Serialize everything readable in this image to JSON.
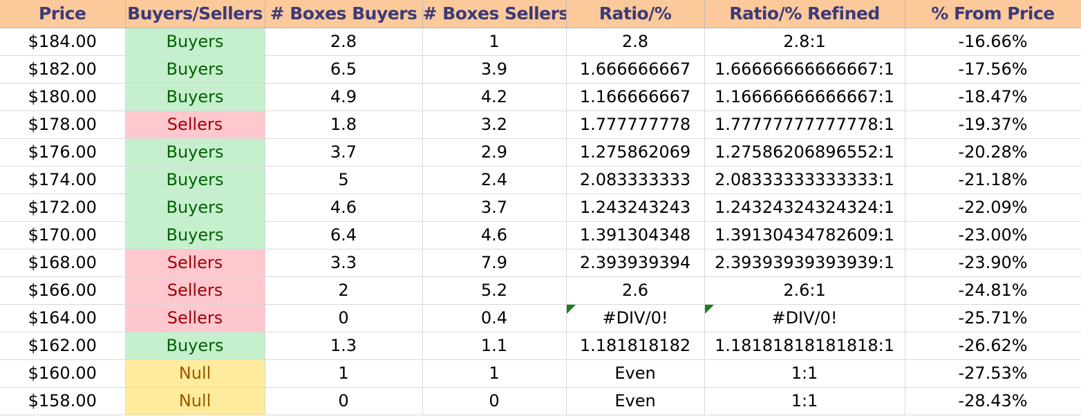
{
  "headers": [
    "Price",
    "Buyers/Sellers",
    "# Boxes Buyers",
    "# Boxes Sellers",
    "Ratio/%",
    "Ratio/% Refined",
    "% From Price"
  ],
  "rows": [
    {
      "price": "$184.00",
      "side": "Buyers",
      "buyers": "2.8",
      "sellers": "1",
      "ratio": "2.8",
      "refined": "2.8:1",
      "from_price": "-16.66%"
    },
    {
      "price": "$182.00",
      "side": "Buyers",
      "buyers": "6.5",
      "sellers": "3.9",
      "ratio": "1.666666667",
      "refined": "1.66666666666667:1",
      "from_price": "-17.56%"
    },
    {
      "price": "$180.00",
      "side": "Buyers",
      "buyers": "4.9",
      "sellers": "4.2",
      "ratio": "1.166666667",
      "refined": "1.16666666666667:1",
      "from_price": "-18.47%"
    },
    {
      "price": "$178.00",
      "side": "Sellers",
      "buyers": "1.8",
      "sellers": "3.2",
      "ratio": "1.777777778",
      "refined": "1.77777777777778:1",
      "from_price": "-19.37%"
    },
    {
      "price": "$176.00",
      "side": "Buyers",
      "buyers": "3.7",
      "sellers": "2.9",
      "ratio": "1.275862069",
      "refined": "1.27586206896552:1",
      "from_price": "-20.28%"
    },
    {
      "price": "$174.00",
      "side": "Buyers",
      "buyers": "5",
      "sellers": "2.4",
      "ratio": "2.083333333",
      "refined": "2.08333333333333:1",
      "from_price": "-21.18%"
    },
    {
      "price": "$172.00",
      "side": "Buyers",
      "buyers": "4.6",
      "sellers": "3.7",
      "ratio": "1.243243243",
      "refined": "1.24324324324324:1",
      "from_price": "-22.09%"
    },
    {
      "price": "$170.00",
      "side": "Buyers",
      "buyers": "6.4",
      "sellers": "4.6",
      "ratio": "1.391304348",
      "refined": "1.39130434782609:1",
      "from_price": "-23.00%"
    },
    {
      "price": "$168.00",
      "side": "Sellers",
      "buyers": "3.3",
      "sellers": "7.9",
      "ratio": "2.393939394",
      "refined": "2.39393939393939:1",
      "from_price": "-23.90%"
    },
    {
      "price": "$166.00",
      "side": "Sellers",
      "buyers": "2",
      "sellers": "5.2",
      "ratio": "2.6",
      "refined": "2.6:1",
      "from_price": "-24.81%"
    },
    {
      "price": "$164.00",
      "side": "Sellers",
      "buyers": "0",
      "sellers": "0.4",
      "ratio": "#DIV/0!",
      "refined": "#DIV/0!",
      "from_price": "-25.71%",
      "error": true
    },
    {
      "price": "$162.00",
      "side": "Buyers",
      "buyers": "1.3",
      "sellers": "1.1",
      "ratio": "1.181818182",
      "refined": "1.18181818181818:1",
      "from_price": "-26.62%"
    },
    {
      "price": "$160.00",
      "side": "Null",
      "buyers": "1",
      "sellers": "1",
      "ratio": "Even",
      "refined": "1:1",
      "from_price": "-27.53%"
    },
    {
      "price": "$158.00",
      "side": "Null",
      "buyers": "0",
      "sellers": "0",
      "ratio": "Even",
      "refined": "1:1",
      "from_price": "-28.43%"
    }
  ],
  "colors": {
    "header_bg": "#fcc99b",
    "header_text": "#3c3a78",
    "buyers_bg": "#c6efce",
    "buyers_text": "#006100",
    "sellers_bg": "#ffc7ce",
    "sellers_text": "#9c0006",
    "null_bg": "#ffeb9c",
    "null_text": "#9c5700",
    "error_indicator": "#1e7b1e"
  }
}
